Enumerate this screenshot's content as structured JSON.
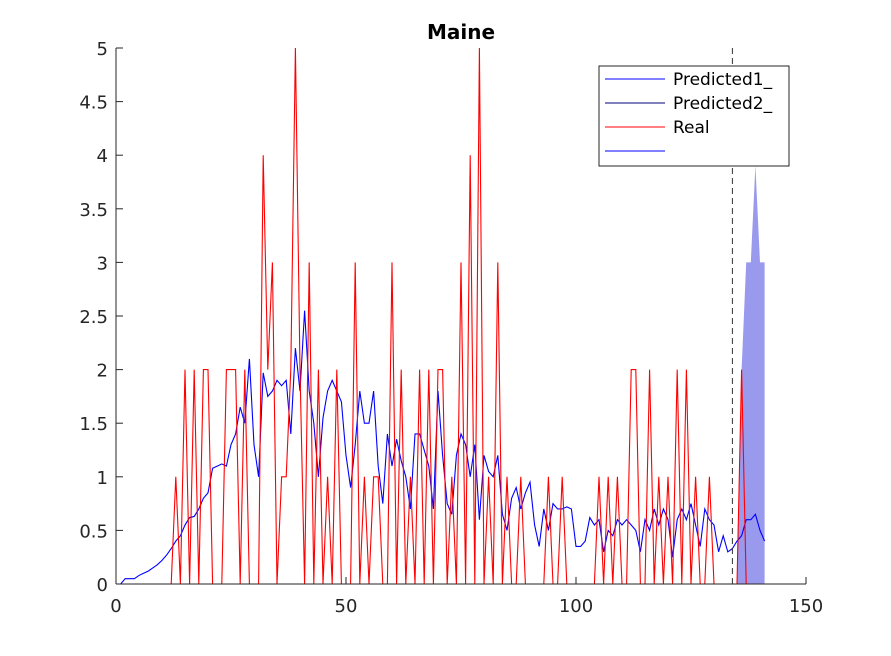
{
  "chart_data": {
    "type": "line",
    "title": "Maine",
    "xlabel": "",
    "ylabel": "",
    "xlim": [
      0,
      150
    ],
    "ylim": [
      0,
      5
    ],
    "xticks": [
      0,
      50,
      100,
      150
    ],
    "yticks": [
      0,
      0.5,
      1,
      1.5,
      2,
      2.5,
      3,
      3.5,
      4,
      4.5,
      5
    ],
    "xtick_labels": [
      "0",
      "50",
      "100",
      "150"
    ],
    "ytick_labels": [
      "0",
      "0.5",
      "1",
      "1.5",
      "2",
      "2.5",
      "3",
      "3.5",
      "4",
      "4.5",
      "5"
    ],
    "grid": false,
    "legend_position": "top-right",
    "vertical_line_x": 134,
    "series": [
      {
        "name": "Predicted1_",
        "color": "#0000ff",
        "x": [
          1,
          2,
          3,
          4,
          5,
          6,
          7,
          8,
          9,
          10,
          11,
          12,
          13,
          14,
          15,
          16,
          17,
          18,
          19,
          20,
          21,
          22,
          23,
          24,
          25,
          26,
          27,
          28,
          29,
          30,
          31,
          32,
          33,
          34,
          35,
          36,
          37,
          38,
          39,
          40,
          41,
          42,
          43,
          44,
          45,
          46,
          47,
          48,
          49,
          50,
          51,
          52,
          53,
          54,
          55,
          56,
          57,
          58,
          59,
          60,
          61,
          62,
          63,
          64,
          65,
          66,
          67,
          68,
          69,
          70,
          71,
          72,
          73,
          74,
          75,
          76,
          77,
          78,
          79,
          80,
          81,
          82,
          83,
          84,
          85,
          86,
          87,
          88,
          89,
          90,
          91,
          92,
          93,
          94,
          95,
          96,
          97,
          98,
          99,
          100,
          101,
          102,
          103,
          104,
          105,
          106,
          107,
          108,
          109,
          110,
          111,
          112,
          113,
          114,
          115,
          116,
          117,
          118,
          119,
          120,
          121,
          122,
          123,
          124,
          125,
          126,
          127,
          128,
          129,
          130,
          131,
          132,
          133,
          134,
          135,
          136,
          137,
          138,
          139,
          140,
          141
        ],
        "y": [
          0,
          0.05,
          0.05,
          0.05,
          0.08,
          0.1,
          0.12,
          0.15,
          0.18,
          0.22,
          0.27,
          0.33,
          0.4,
          0.45,
          0.55,
          0.62,
          0.63,
          0.7,
          0.8,
          0.85,
          1.08,
          1.1,
          1.12,
          1.1,
          1.3,
          1.4,
          1.65,
          1.5,
          2.1,
          1.3,
          1.0,
          1.97,
          1.75,
          1.8,
          1.9,
          1.85,
          1.9,
          1.4,
          2.2,
          1.8,
          2.55,
          1.8,
          1.5,
          1.0,
          1.55,
          1.8,
          1.9,
          1.8,
          1.7,
          1.2,
          0.9,
          1.3,
          1.8,
          1.5,
          1.5,
          1.8,
          1.1,
          0.75,
          1.4,
          1.1,
          1.35,
          1.15,
          1.0,
          0.7,
          1.4,
          1.4,
          1.25,
          1.1,
          0.7,
          1.8,
          1.2,
          0.75,
          0.65,
          1.2,
          1.4,
          1.3,
          1.0,
          1.3,
          0.6,
          1.2,
          1.05,
          1.0,
          1.2,
          0.65,
          0.5,
          0.8,
          0.9,
          0.7,
          0.85,
          0.95,
          0.55,
          0.35,
          0.7,
          0.5,
          0.75,
          0.7,
          0.7,
          0.72,
          0.7,
          0.35,
          0.35,
          0.4,
          0.62,
          0.55,
          0.6,
          0.3,
          0.5,
          0.45,
          0.6,
          0.55,
          0.6,
          0.55,
          0.5,
          0.3,
          0.6,
          0.5,
          0.7,
          0.55,
          0.7,
          0.6,
          0.25,
          0.6,
          0.7,
          0.6,
          0.75,
          0.55,
          0.35,
          0.7,
          0.6,
          0.55,
          0.3,
          0.45,
          0.3,
          0.33,
          0.4,
          0.45,
          0.6,
          0.6,
          0.65,
          0.5,
          0.4
        ]
      },
      {
        "name": "Predicted2_",
        "color": "#00007f",
        "x": [],
        "y": []
      },
      {
        "name": "Real",
        "color": "#ff0000",
        "x": [
          1,
          2,
          3,
          4,
          5,
          6,
          7,
          8,
          9,
          10,
          11,
          12,
          13,
          14,
          15,
          16,
          17,
          18,
          19,
          20,
          21,
          22,
          23,
          24,
          25,
          26,
          27,
          28,
          29,
          30,
          31,
          32,
          33,
          34,
          35,
          36,
          37,
          38,
          39,
          40,
          41,
          42,
          43,
          44,
          45,
          46,
          47,
          48,
          49,
          50,
          51,
          52,
          53,
          54,
          55,
          56,
          57,
          58,
          59,
          60,
          61,
          62,
          63,
          64,
          65,
          66,
          67,
          68,
          69,
          70,
          71,
          72,
          73,
          74,
          75,
          76,
          77,
          78,
          79,
          80,
          81,
          82,
          83,
          84,
          85,
          86,
          87,
          88,
          89,
          90,
          91,
          92,
          93,
          94,
          95,
          96,
          97,
          98,
          99,
          100,
          101,
          102,
          103,
          104,
          105,
          106,
          107,
          108,
          109,
          110,
          111,
          112,
          113,
          114,
          115,
          116,
          117,
          118,
          119,
          120,
          121,
          122,
          123,
          124,
          125,
          126,
          127,
          128,
          129,
          130,
          131,
          132,
          133,
          134,
          135,
          136,
          137,
          138,
          139,
          140,
          141
        ],
        "y": [
          0,
          0,
          0,
          0,
          0,
          0,
          0,
          0,
          0,
          0,
          0,
          0,
          1,
          0,
          2,
          0,
          2,
          0,
          2,
          2,
          0,
          0,
          0,
          2,
          2,
          2,
          0,
          2,
          0,
          0,
          0,
          4,
          2,
          3,
          0,
          1,
          1,
          2,
          5,
          2,
          0,
          3,
          0,
          2,
          0,
          1,
          0,
          2,
          0,
          0,
          0,
          3,
          0,
          1,
          0,
          1,
          1,
          0,
          0,
          3,
          0,
          2,
          0,
          1,
          0,
          2,
          0,
          2,
          0,
          2,
          2,
          0,
          1,
          0,
          3,
          0,
          4,
          0,
          5,
          0,
          1,
          0,
          3,
          0,
          1,
          0,
          0,
          1,
          0,
          0,
          0,
          0,
          0,
          1,
          0,
          0,
          1,
          0,
          0,
          0,
          0,
          0,
          0,
          0,
          1,
          0,
          1,
          0,
          1,
          0,
          0,
          2,
          2,
          0,
          0,
          2,
          0,
          1,
          0,
          1,
          0,
          2,
          0,
          2,
          0,
          1,
          0,
          0,
          1,
          0,
          0,
          0,
          0,
          0,
          0,
          2,
          0,
          0,
          0,
          0,
          0
        ]
      },
      {
        "name": "",
        "color": "#0000ff",
        "x": [],
        "y": []
      }
    ],
    "area": {
      "color": "#9999ee",
      "x": [
        135,
        136,
        137,
        138,
        139,
        140,
        141
      ],
      "upper": [
        0.2,
        2.0,
        3.0,
        3.0,
        3.9,
        3.0,
        3.0
      ],
      "lower": [
        0,
        0,
        0,
        0,
        0,
        0,
        0
      ]
    }
  }
}
